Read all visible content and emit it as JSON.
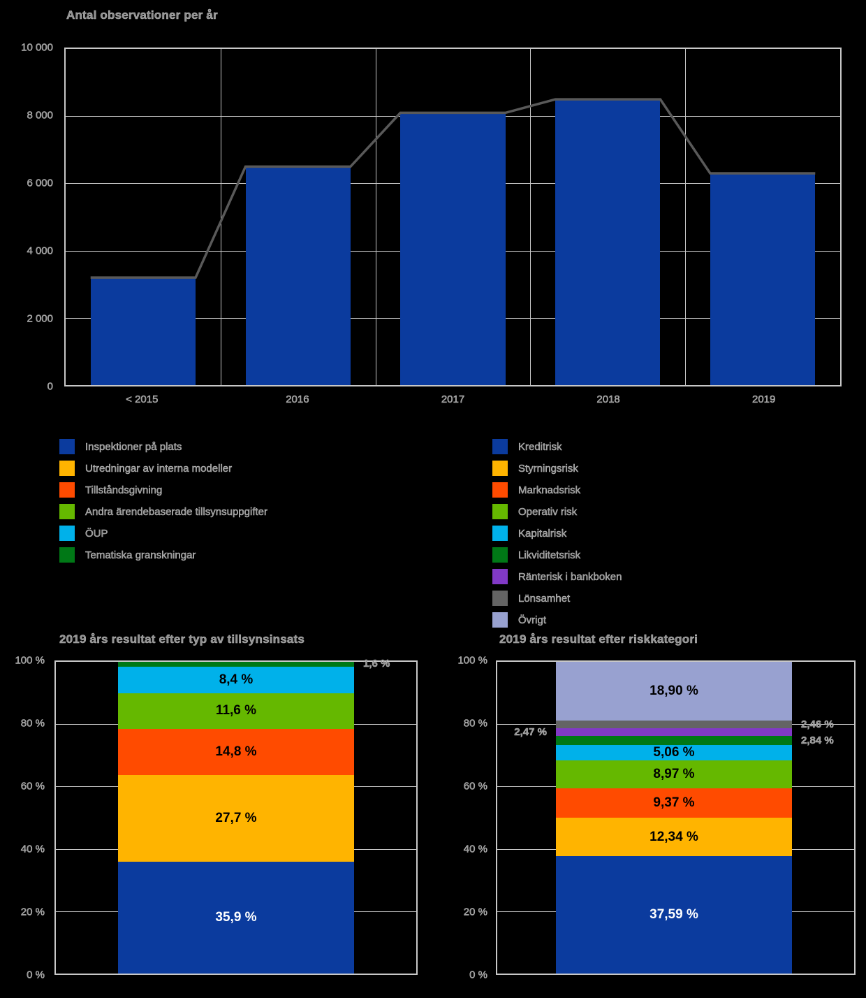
{
  "colors": {
    "background": "#000000",
    "grid": "#C8C8C8",
    "ghost_text": "#8f8f8f",
    "bar_blue": "#0B3B9E",
    "amber": "#FFB400",
    "orange_red": "#FF4B00",
    "green": "#65B800",
    "cyan": "#00B1EA",
    "dark_green": "#007816",
    "purple": "#8139C6",
    "gray": "#646464",
    "periwinkle": "#98A1D0",
    "overlay_line": "#595959"
  },
  "chart_data": [
    {
      "id": "observations-per-year",
      "type": "bar",
      "title": "Antal observationer per år",
      "categories": [
        "< 2015",
        "2016",
        "2017",
        "2018",
        "2019"
      ],
      "values": [
        3200,
        6500,
        8100,
        8500,
        6300
      ],
      "line_overlay": "connects bar tops",
      "y_ticks": [
        "10 000",
        "8 000",
        "6 000",
        "4 000",
        "2 000",
        "0"
      ],
      "ylim": [
        0,
        10000
      ],
      "grid": "on",
      "legend_position": "none",
      "bar_color": "#0B3B9E",
      "line_color": "#595959"
    },
    {
      "id": "results-by-supervisory-activity",
      "type": "stacked-bar",
      "title": "2019 års resultat efter typ av tillsynsinsats",
      "y_ticks": [
        "100 %",
        "80 %",
        "60 %",
        "40 %",
        "20 %",
        "0 %"
      ],
      "ylim": [
        0,
        100
      ],
      "grid": "on",
      "segments_bottom_to_top": [
        {
          "label": "Inspektioner på plats",
          "value": 35.9,
          "display": "35,9 %",
          "color": "#0B3B9E",
          "label_style": "white",
          "label_pos": "inside"
        },
        {
          "label": "Utredningar av interna modeller",
          "value": 27.7,
          "display": "27,7 %",
          "color": "#FFB400",
          "label_style": "black",
          "label_pos": "inside"
        },
        {
          "label": "Tillståndsgivning",
          "value": 14.8,
          "display": "14,8 %",
          "color": "#FF4B00",
          "label_style": "black",
          "label_pos": "inside"
        },
        {
          "label": "Andra ärendebaserade tillsynsuppgifter",
          "value": 11.6,
          "display": "11,6 %",
          "color": "#65B800",
          "label_style": "black",
          "label_pos": "inside"
        },
        {
          "label": "ÖUP",
          "value": 8.4,
          "display": "8,4 %",
          "color": "#00B1EA",
          "label_style": "black",
          "label_pos": "inside"
        },
        {
          "label": "Tematiska granskningar",
          "value": 1.6,
          "display": "1,6 %",
          "color": "#007816",
          "label_style": "ghost",
          "label_pos": "right"
        }
      ]
    },
    {
      "id": "results-by-risk-category",
      "type": "stacked-bar",
      "title": "2019 års resultat efter riskkategori",
      "y_ticks": [
        "100 %",
        "80 %",
        "60 %",
        "40 %",
        "20 %",
        "0 %"
      ],
      "ylim": [
        0,
        100
      ],
      "grid": "on",
      "segments_bottom_to_top": [
        {
          "label": "Kreditrisk",
          "value": 37.59,
          "display": "37,59 %",
          "color": "#0B3B9E",
          "label_style": "white",
          "label_pos": "inside"
        },
        {
          "label": "Styrningsrisk",
          "value": 12.34,
          "display": "12,34 %",
          "color": "#FFB400",
          "label_style": "black",
          "label_pos": "inside"
        },
        {
          "label": "Marknadsrisk",
          "value": 9.37,
          "display": "9,37 %",
          "color": "#FF4B00",
          "label_style": "black",
          "label_pos": "inside"
        },
        {
          "label": "Operativ risk",
          "value": 8.97,
          "display": "8,97 %",
          "color": "#65B800",
          "label_style": "black",
          "label_pos": "inside"
        },
        {
          "label": "Kapitalrisk",
          "value": 5.06,
          "display": "5,06 %",
          "color": "#00B1EA",
          "label_style": "black",
          "label_pos": "inside"
        },
        {
          "label": "Likviditetsrisk",
          "value": 2.84,
          "display": "2,84 %",
          "color": "#007816",
          "label_style": "ghost",
          "label_pos": "right"
        },
        {
          "label": "Ränterisk i bankboken",
          "value": 2.47,
          "display": "2,47 %",
          "color": "#8139C6",
          "label_style": "ghost",
          "label_pos": "left"
        },
        {
          "label": "Lönsamhet",
          "value": 2.46,
          "display": "2,46 %",
          "color": "#646464",
          "label_style": "ghost",
          "label_pos": "right"
        },
        {
          "label": "Övrigt",
          "value": 18.9,
          "display": "18,90 %",
          "color": "#98A1D0",
          "label_style": "black",
          "label_pos": "inside"
        }
      ]
    }
  ],
  "legends": {
    "left": {
      "items": [
        {
          "label": "Inspektioner på plats",
          "color": "#0B3B9E"
        },
        {
          "label": "Utredningar av interna modeller",
          "color": "#FFB400"
        },
        {
          "label": "Tillståndsgivning",
          "color": "#FF4B00"
        },
        {
          "label": "Andra ärendebaserade tillsynsuppgifter",
          "color": "#65B800"
        },
        {
          "label": "ÖUP",
          "color": "#00B1EA"
        },
        {
          "label": "Tematiska granskningar",
          "color": "#007816"
        }
      ]
    },
    "right": {
      "items": [
        {
          "label": "Kreditrisk",
          "color": "#0B3B9E"
        },
        {
          "label": "Styrningsrisk",
          "color": "#FFB400"
        },
        {
          "label": "Marknadsrisk",
          "color": "#FF4B00"
        },
        {
          "label": "Operativ risk",
          "color": "#65B800"
        },
        {
          "label": "Kapitalrisk",
          "color": "#00B1EA"
        },
        {
          "label": "Likviditetsrisk",
          "color": "#007816"
        },
        {
          "label": "Ränterisk i bankboken",
          "color": "#8139C6"
        },
        {
          "label": "Lönsamhet",
          "color": "#646464"
        },
        {
          "label": "Övrigt",
          "color": "#98A1D0"
        }
      ]
    }
  }
}
